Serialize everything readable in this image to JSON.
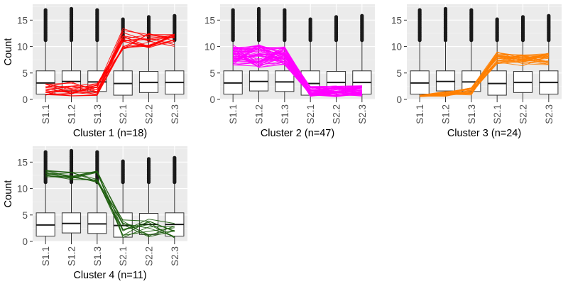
{
  "chart_data": [
    {
      "type": "box",
      "title": "",
      "xlabel": "Cluster 1 (n=18)",
      "ylabel": "Count",
      "categories": [
        "S1.1",
        "S1.2",
        "S1.3",
        "S2.1",
        "S2.2",
        "S2.3"
      ],
      "ylim": [
        0,
        18
      ],
      "yticks": [
        0,
        5,
        10,
        15
      ],
      "grid": true,
      "line_color": "#ff0000",
      "line_count": 18,
      "profile_summary": {
        "S1.1": [
          0.6,
          3.2
        ],
        "S1.2": [
          0.6,
          3.4
        ],
        "S1.3": [
          0.6,
          3.0
        ],
        "S2.1": [
          9.5,
          13.5
        ],
        "S2.2": [
          9.5,
          12.5
        ],
        "S2.3": [
          10.0,
          12.5
        ]
      },
      "boxes": [
        {
          "q1": 1.0,
          "median": 3.1,
          "q3": 5.4,
          "whisker_low": 0,
          "whisker_high": 11.0,
          "outliers_from": 11.2,
          "outliers_to": 17.0
        },
        {
          "q1": 1.6,
          "median": 3.4,
          "q3": 5.4,
          "whisker_low": 0,
          "whisker_high": 11.0,
          "outliers_from": 11.2,
          "outliers_to": 17.3
        },
        {
          "q1": 1.5,
          "median": 3.3,
          "q3": 5.4,
          "whisker_low": 0,
          "whisker_high": 11.0,
          "outliers_from": 11.2,
          "outliers_to": 17.0
        },
        {
          "q1": 0.8,
          "median": 3.0,
          "q3": 5.4,
          "whisker_low": 0,
          "whisker_high": 11.0,
          "outliers_from": 11.2,
          "outliers_to": 15.3
        },
        {
          "q1": 1.3,
          "median": 3.2,
          "q3": 5.3,
          "whisker_low": 0,
          "whisker_high": 11.0,
          "outliers_from": 11.2,
          "outliers_to": 15.8
        },
        {
          "q1": 1.0,
          "median": 3.2,
          "q3": 5.4,
          "whisker_low": 0,
          "whisker_high": 11.0,
          "outliers_from": 11.2,
          "outliers_to": 16.0
        }
      ]
    },
    {
      "type": "box",
      "title": "",
      "xlabel": "Cluster 2 (n=47)",
      "ylabel": "",
      "categories": [
        "S1.1",
        "S1.2",
        "S1.3",
        "S2.1",
        "S2.2",
        "S2.3"
      ],
      "ylim": [
        0,
        18
      ],
      "yticks": [
        0,
        5,
        10,
        15
      ],
      "grid": true,
      "line_color": "#ff00ff",
      "line_count": 47,
      "profile_summary": {
        "S1.1": [
          6.5,
          10.3
        ],
        "S1.2": [
          6.0,
          10.5
        ],
        "S1.3": [
          6.5,
          10.0
        ],
        "S2.1": [
          0.5,
          2.5
        ],
        "S2.2": [
          0.5,
          2.6
        ],
        "S2.3": [
          0.5,
          2.6
        ]
      },
      "boxes": [
        {
          "q1": 1.0,
          "median": 3.1,
          "q3": 5.4,
          "whisker_low": 0,
          "whisker_high": 11.0,
          "outliers_from": 11.2,
          "outliers_to": 17.0
        },
        {
          "q1": 1.6,
          "median": 3.4,
          "q3": 5.4,
          "whisker_low": 0,
          "whisker_high": 11.0,
          "outliers_from": 11.2,
          "outliers_to": 17.3
        },
        {
          "q1": 1.5,
          "median": 3.3,
          "q3": 5.4,
          "whisker_low": 0,
          "whisker_high": 11.0,
          "outliers_from": 11.2,
          "outliers_to": 17.0
        },
        {
          "q1": 0.8,
          "median": 3.0,
          "q3": 5.4,
          "whisker_low": 0,
          "whisker_high": 11.0,
          "outliers_from": 11.2,
          "outliers_to": 15.3
        },
        {
          "q1": 1.3,
          "median": 3.2,
          "q3": 5.3,
          "whisker_low": 0,
          "whisker_high": 11.0,
          "outliers_from": 11.2,
          "outliers_to": 15.8
        },
        {
          "q1": 1.0,
          "median": 3.2,
          "q3": 5.4,
          "whisker_low": 0,
          "whisker_high": 11.0,
          "outliers_from": 11.2,
          "outliers_to": 16.0
        }
      ]
    },
    {
      "type": "box",
      "title": "",
      "xlabel": "Cluster 3 (n=24)",
      "ylabel": "",
      "categories": [
        "S1.1",
        "S1.2",
        "S1.3",
        "S2.1",
        "S2.2",
        "S2.3"
      ],
      "ylim": [
        0,
        18
      ],
      "yticks": [
        0,
        5,
        10,
        15
      ],
      "grid": true,
      "line_color": "#ff7f00",
      "line_count": 24,
      "profile_summary": {
        "S1.1": [
          0.5,
          0.8
        ],
        "S1.2": [
          0.5,
          1.5
        ],
        "S1.3": [
          0.8,
          2.2
        ],
        "S2.1": [
          6.5,
          9.0
        ],
        "S2.2": [
          6.3,
          8.5
        ],
        "S2.3": [
          6.5,
          8.8
        ]
      },
      "boxes": [
        {
          "q1": 1.0,
          "median": 3.1,
          "q3": 5.4,
          "whisker_low": 0,
          "whisker_high": 11.0,
          "outliers_from": 11.2,
          "outliers_to": 17.0
        },
        {
          "q1": 1.6,
          "median": 3.4,
          "q3": 5.4,
          "whisker_low": 0,
          "whisker_high": 11.0,
          "outliers_from": 11.2,
          "outliers_to": 17.3
        },
        {
          "q1": 1.5,
          "median": 3.3,
          "q3": 5.4,
          "whisker_low": 0,
          "whisker_high": 11.0,
          "outliers_from": 11.2,
          "outliers_to": 17.0
        },
        {
          "q1": 0.8,
          "median": 3.0,
          "q3": 5.4,
          "whisker_low": 0,
          "whisker_high": 11.0,
          "outliers_from": 11.2,
          "outliers_to": 15.3
        },
        {
          "q1": 1.3,
          "median": 3.2,
          "q3": 5.3,
          "whisker_low": 0,
          "whisker_high": 11.0,
          "outliers_from": 11.2,
          "outliers_to": 15.8
        },
        {
          "q1": 1.0,
          "median": 3.2,
          "q3": 5.4,
          "whisker_low": 0,
          "whisker_high": 11.0,
          "outliers_from": 11.2,
          "outliers_to": 16.0
        }
      ]
    },
    {
      "type": "box",
      "title": "",
      "xlabel": "Cluster 4 (n=11)",
      "ylabel": "Count",
      "categories": [
        "S1.1",
        "S1.2",
        "S1.3",
        "S2.1",
        "S2.2",
        "S2.3"
      ],
      "ylim": [
        0,
        18
      ],
      "yticks": [
        0,
        5,
        10,
        15
      ],
      "grid": true,
      "line_color": "#1a5c0a",
      "line_count": 11,
      "profile_summary": {
        "S1.1": [
          11.8,
          13.5
        ],
        "S1.2": [
          11.5,
          13.4
        ],
        "S1.3": [
          11.0,
          13.5
        ],
        "S2.1": [
          0.6,
          4.2
        ],
        "S2.2": [
          0.6,
          4.5
        ],
        "S2.3": [
          0.6,
          4.0
        ]
      },
      "boxes": [
        {
          "q1": 1.0,
          "median": 3.1,
          "q3": 5.4,
          "whisker_low": 0,
          "whisker_high": 11.0,
          "outliers_from": 11.2,
          "outliers_to": 17.0
        },
        {
          "q1": 1.6,
          "median": 3.4,
          "q3": 5.4,
          "whisker_low": 0,
          "whisker_high": 11.0,
          "outliers_from": 11.2,
          "outliers_to": 17.3
        },
        {
          "q1": 1.5,
          "median": 3.3,
          "q3": 5.4,
          "whisker_low": 0,
          "whisker_high": 11.0,
          "outliers_from": 11.2,
          "outliers_to": 17.0
        },
        {
          "q1": 0.8,
          "median": 3.0,
          "q3": 5.4,
          "whisker_low": 0,
          "whisker_high": 11.0,
          "outliers_from": 11.2,
          "outliers_to": 15.3
        },
        {
          "q1": 1.3,
          "median": 3.2,
          "q3": 5.3,
          "whisker_low": 0,
          "whisker_high": 11.0,
          "outliers_from": 11.2,
          "outliers_to": 15.8
        },
        {
          "q1": 1.0,
          "median": 3.2,
          "q3": 5.4,
          "whisker_low": 0,
          "whisker_high": 11.0,
          "outliers_from": 11.2,
          "outliers_to": 16.0
        }
      ]
    }
  ]
}
